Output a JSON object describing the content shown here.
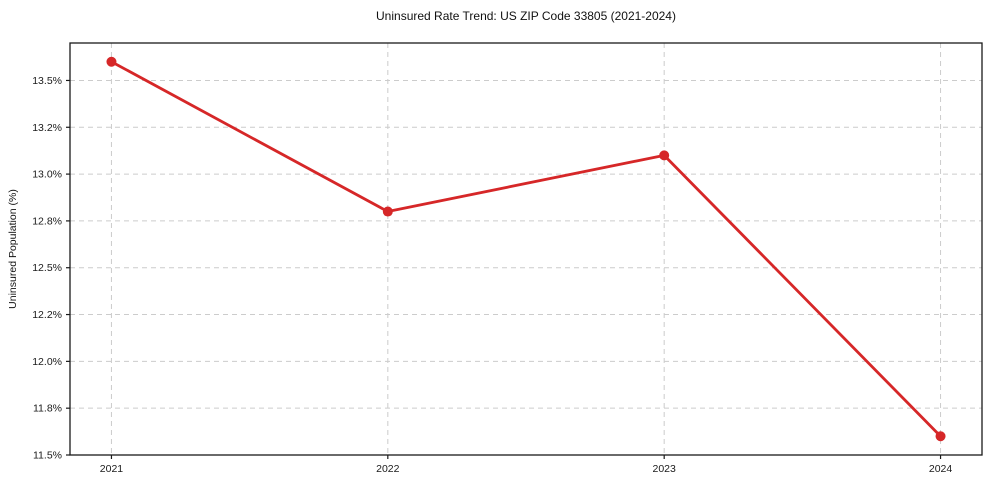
{
  "chart_data": {
    "type": "line",
    "title": "Uninsured Rate Trend: US ZIP Code 33805 (2021-2024)",
    "xlabel": "",
    "ylabel": "Uninsured Population (%)",
    "x": [
      2021,
      2022,
      2023,
      2024
    ],
    "categories": [
      "2021",
      "2022",
      "2023",
      "2024"
    ],
    "series": [
      {
        "name": "Uninsured rate",
        "values": [
          13.6,
          12.8,
          13.1,
          11.6
        ]
      }
    ],
    "xlim": [
      2020.85,
      2024.15
    ],
    "ylim": [
      11.5,
      13.7
    ],
    "yticks": [
      {
        "value": 13.5,
        "label": "13.5%"
      },
      {
        "value": 13.25,
        "label": "13.2%"
      },
      {
        "value": 13.0,
        "label": "13.0%"
      },
      {
        "value": 12.75,
        "label": "12.8%"
      },
      {
        "value": 12.5,
        "label": "12.5%"
      },
      {
        "value": 12.25,
        "label": "12.2%"
      },
      {
        "value": 12.0,
        "label": "12.0%"
      },
      {
        "value": 11.75,
        "label": "11.8%"
      },
      {
        "value": 11.5,
        "label": "11.5%"
      }
    ],
    "xticks": [
      {
        "value": 2021,
        "label": "2021"
      },
      {
        "value": 2022,
        "label": "2022"
      },
      {
        "value": 2023,
        "label": "2023"
      },
      {
        "value": 2024,
        "label": "2024"
      }
    ],
    "grid": true,
    "grid_style": "dashed",
    "legend_position": "none",
    "line_color": "#d62728",
    "marker": "circle",
    "marker_radius": 5,
    "line_width": 2.8
  }
}
